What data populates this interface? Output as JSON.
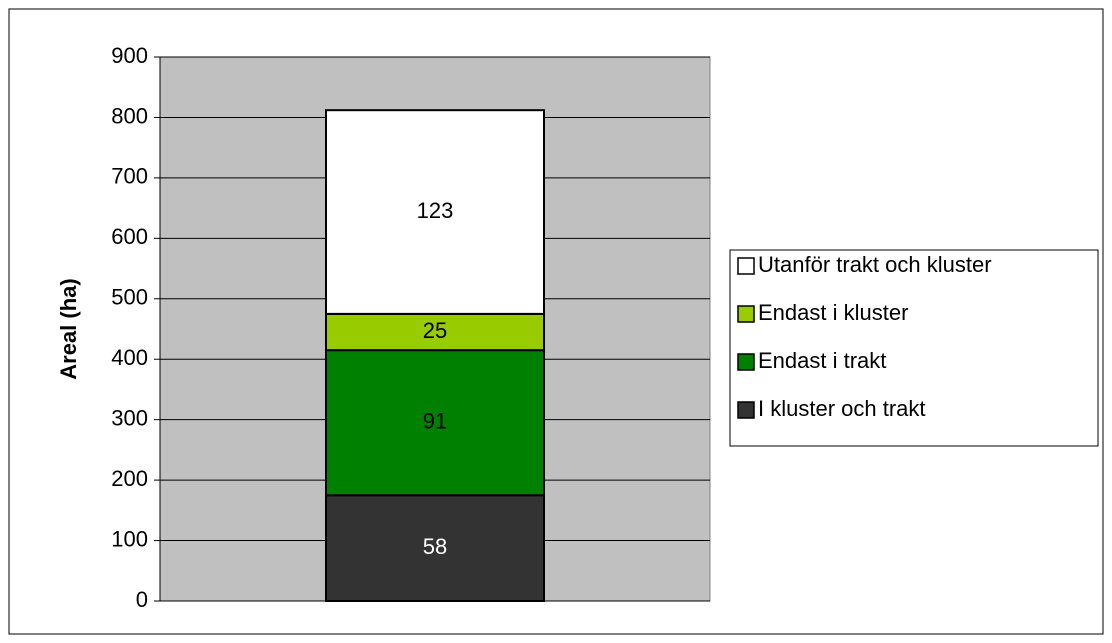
{
  "chart_data": {
    "type": "stacked-bar",
    "ylabel": "Areal (ha)",
    "categories": [
      null
    ],
    "series": [
      {
        "name": "I kluster och trakt",
        "color": "#333333",
        "values": [
          175
        ],
        "annotation": "58"
      },
      {
        "name": "Endast i trakt",
        "color": "#008000",
        "values": [
          240
        ],
        "annotation": "91"
      },
      {
        "name": "Endast i kluster",
        "color": "#99cc00",
        "values": [
          60
        ],
        "annotation": "25"
      },
      {
        "name": "Utanför trakt och kluster",
        "color": "#ffffff",
        "values": [
          337
        ],
        "annotation": "123"
      }
    ],
    "ylim": [
      0,
      900
    ],
    "yticks": [
      0,
      100,
      200,
      300,
      400,
      500,
      600,
      700,
      800,
      900
    ],
    "grid": true,
    "legend": "right",
    "plot_background": "#c0c0c0"
  }
}
